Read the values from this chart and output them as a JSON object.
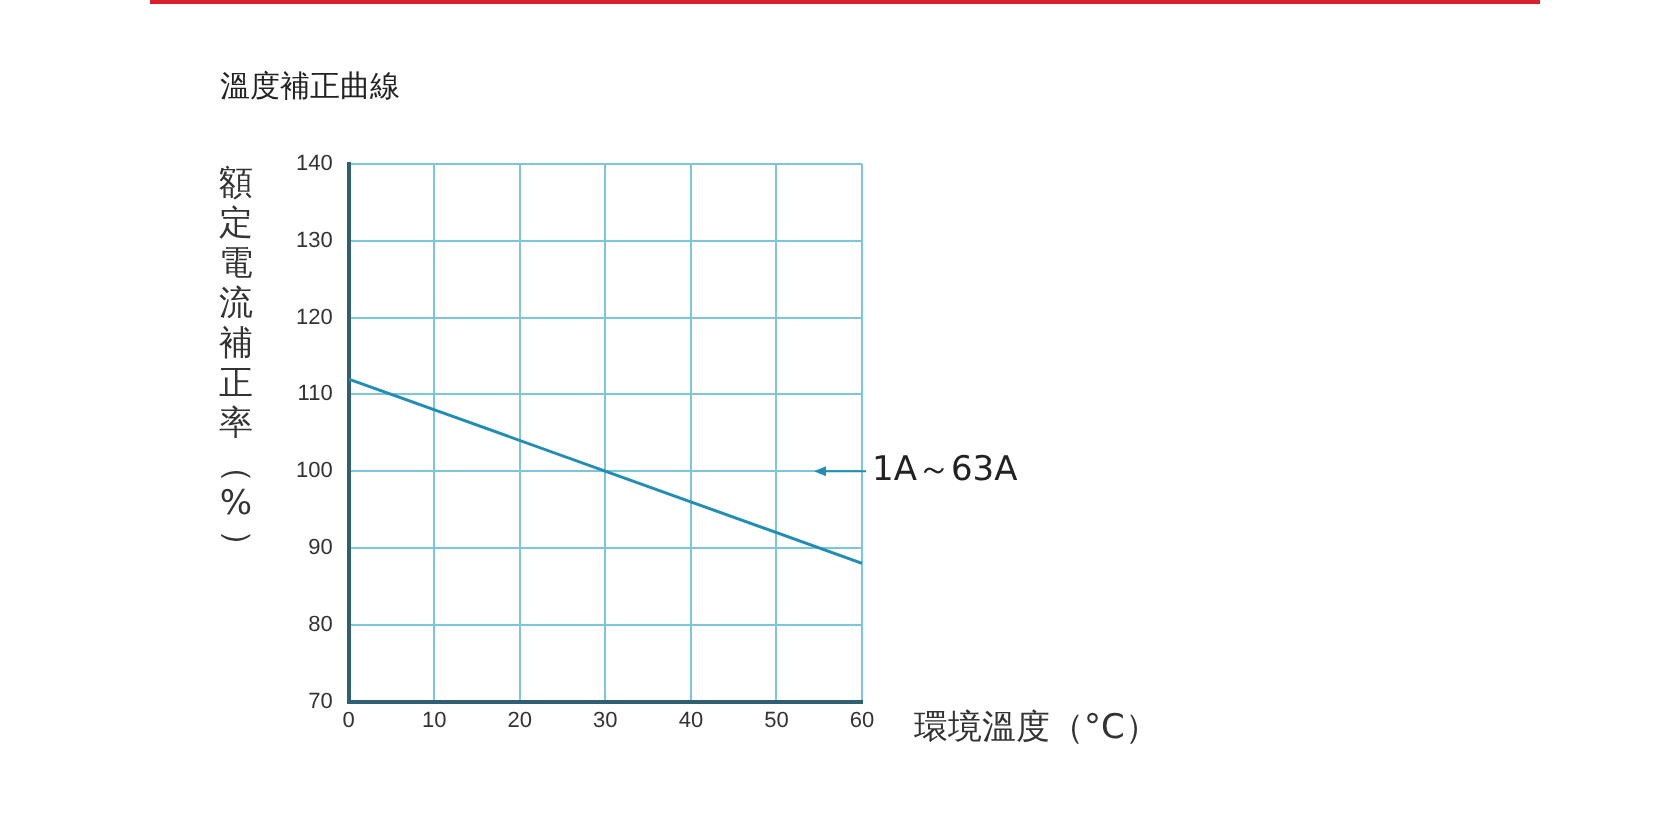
{
  "chart_data": {
    "type": "line",
    "title": "溫度補正曲線",
    "xlabel": "環境溫度（°C）",
    "ylabel": "額定電流補正率（%）",
    "x": [
      0,
      60
    ],
    "series": [
      {
        "name": "1A～63A",
        "color": "#1f8db5",
        "values": [
          112,
          88
        ]
      }
    ],
    "xlim": [
      0,
      60
    ],
    "xticks": [
      0,
      10,
      20,
      30,
      40,
      50,
      60
    ],
    "ylim": [
      70,
      140
    ],
    "yticks": [
      70,
      80,
      90,
      100,
      110,
      120,
      130,
      140
    ],
    "grid": true,
    "legend": "right",
    "marker": "none",
    "line_style": "solid"
  }
}
